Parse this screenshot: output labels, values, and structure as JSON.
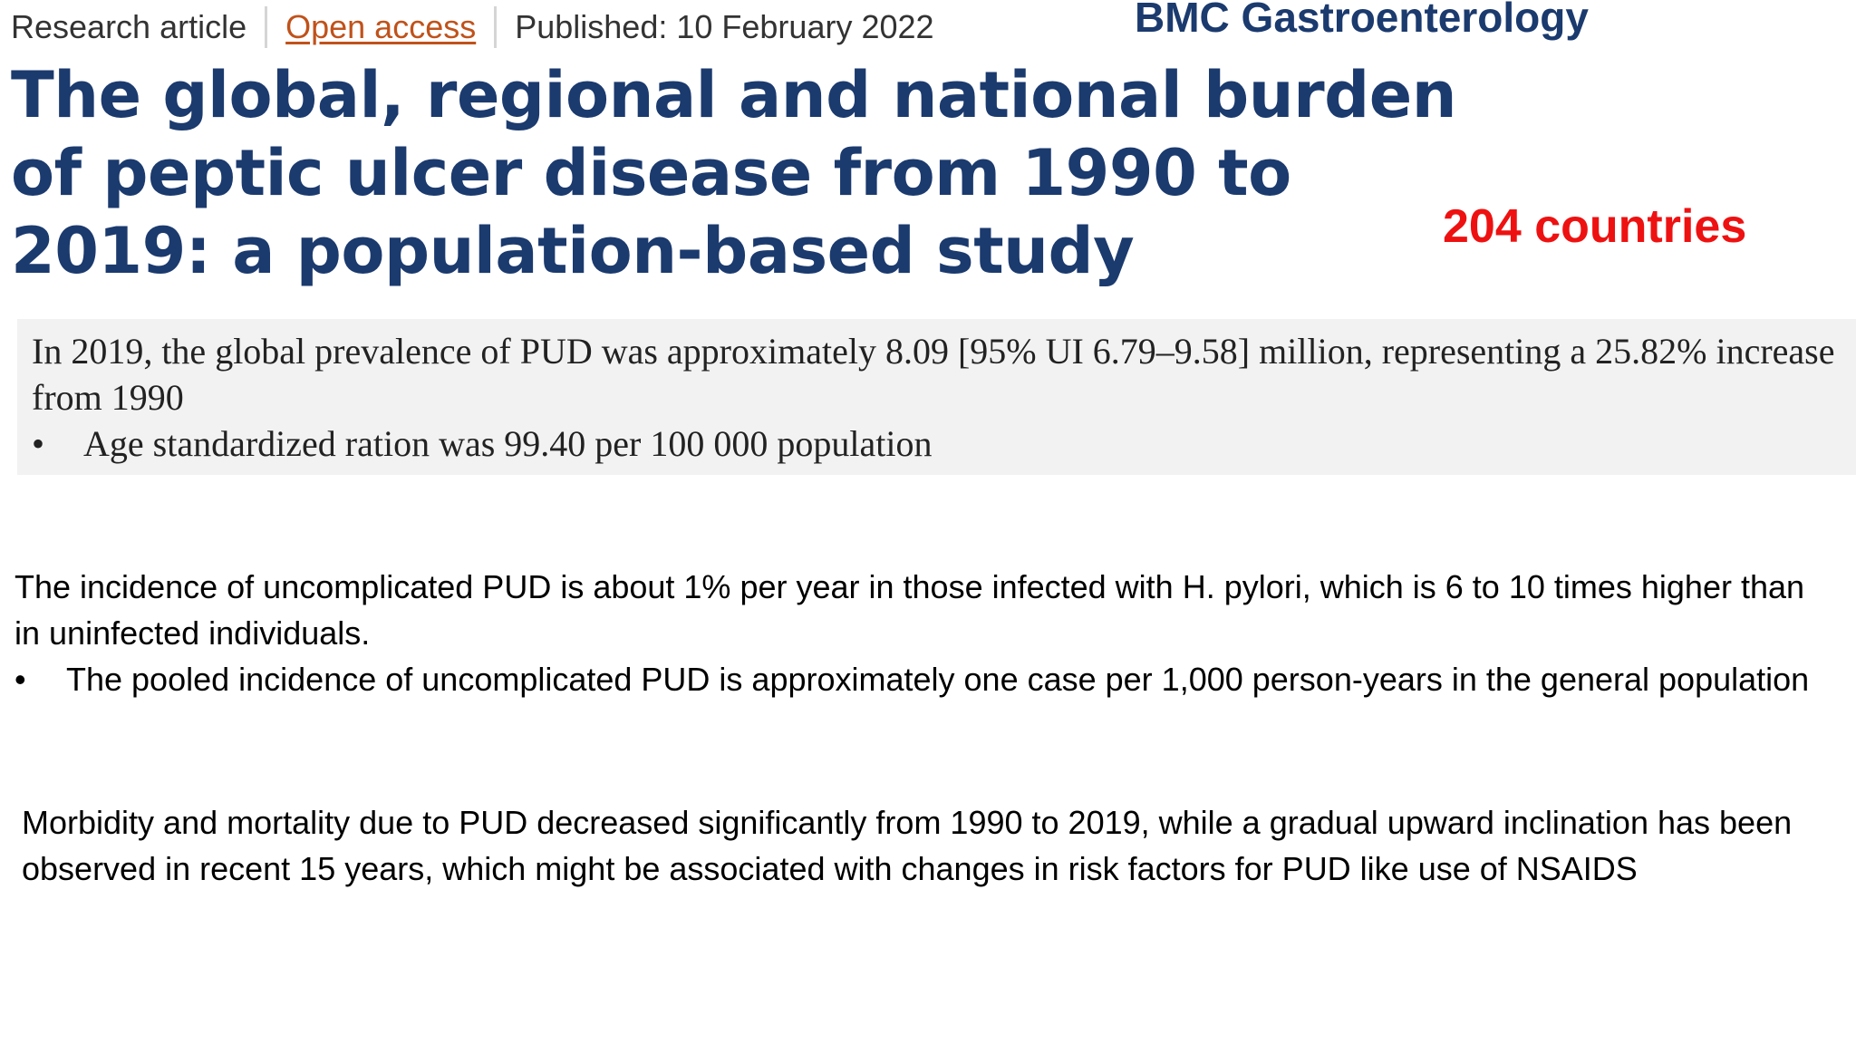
{
  "header": {
    "article_type": "Research article",
    "access": "Open access",
    "published": "Published: 10 February 2022",
    "journal": "BMC Gastroenterology"
  },
  "title": "The global, regional and national burden of peptic ulcer disease from 1990 to 2019: a population-based study",
  "annotation": "204 countries",
  "summary": {
    "text": "In 2019, the global prevalence of PUD was approximately 8.09 [95% UI 6.79–9.58] million, representing a 25.82% increase from 1990",
    "bullet_symbol": "•",
    "bullet": "Age standardized ration was 99.40 per 100 000 population"
  },
  "incidence": {
    "text": "The incidence of uncomplicated PUD is about 1% per year in those  infected with H. pylori, which is 6 to 10 times higher than in uninfected individuals.",
    "bullet_symbol": "•",
    "bullet": "The pooled incidence of uncomplicated PUD is approximately one case per 1,000 person-years in the general population"
  },
  "trend": {
    "text": "Morbidity and mortality due to PUD decreased significantly from 1990 to 2019, while a gradual upward inclination has been observed in recent 15 years, which might be associated with changes in risk factors for PUD like use of NSAIDS"
  },
  "colors": {
    "title": "#1b3a6e",
    "annotation": "#ee1111",
    "open_access_link": "#c0521a",
    "summary_background": "#f2f2f2"
  }
}
